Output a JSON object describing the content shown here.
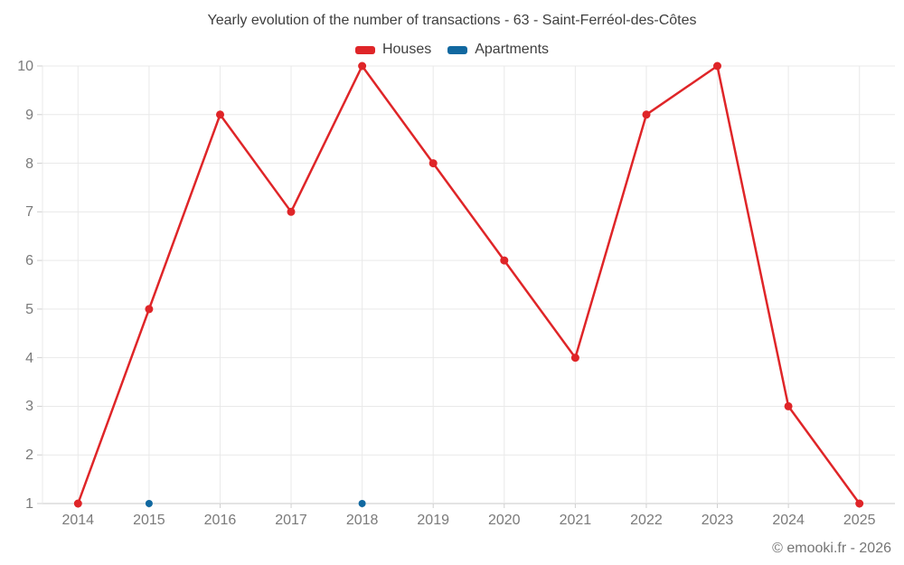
{
  "title": "Yearly evolution of the number of transactions - 63 - Saint-Ferréol-des-Côtes",
  "legend": {
    "items": [
      {
        "label": "Houses",
        "color": "#df2528"
      },
      {
        "label": "Apartments",
        "color": "#1168a0"
      }
    ]
  },
  "footer": {
    "copyright": "© emooki.fr - 2026"
  },
  "chart_data": {
    "type": "line",
    "title": "Yearly evolution of the number of transactions - 63 - Saint-Ferréol-des-Côtes",
    "categories": [
      "2014",
      "2015",
      "2016",
      "2017",
      "2018",
      "2019",
      "2020",
      "2021",
      "2022",
      "2023",
      "2024",
      "2025"
    ],
    "series": [
      {
        "name": "Houses",
        "color": "#df2528",
        "values": [
          1,
          5,
          9,
          7,
          10,
          8,
          6,
          4,
          9,
          10,
          3,
          1
        ]
      },
      {
        "name": "Apartments",
        "color": "#1168a0",
        "values": [
          null,
          1,
          null,
          null,
          1,
          null,
          null,
          null,
          null,
          null,
          null,
          null
        ]
      }
    ],
    "xlabel": "",
    "ylabel": "",
    "ylim": [
      1,
      10
    ],
    "yticks": [
      1,
      2,
      3,
      4,
      5,
      6,
      7,
      8,
      9,
      10
    ],
    "grid": true,
    "legend_position": "top",
    "colors": {
      "grid_line": "#e9e9e9",
      "axis_line": "#c9c9c9",
      "tick_mark": "#cfcfcf",
      "tick_text": "#7a7a7a",
      "title_text": "#3f3f3f"
    }
  }
}
